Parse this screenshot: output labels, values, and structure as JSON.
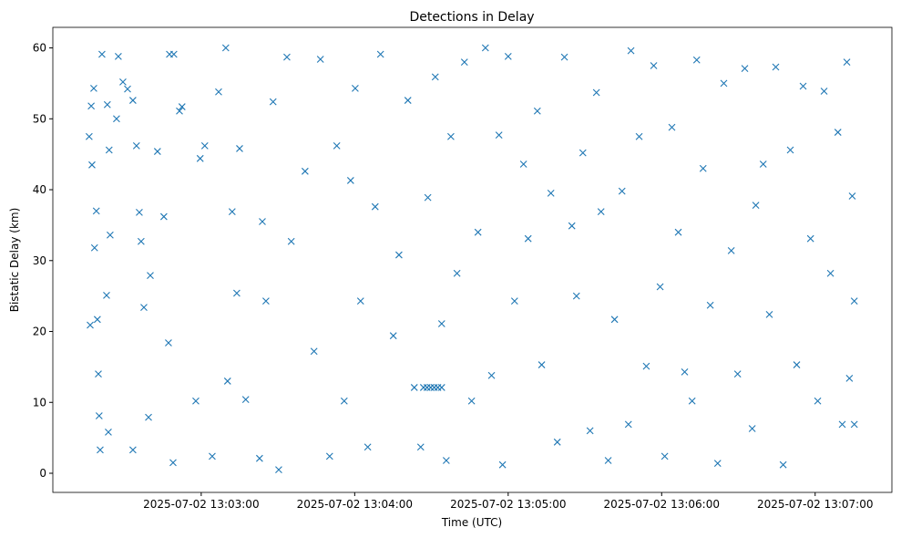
{
  "chart_data": {
    "type": "scatter",
    "title": "Detections in Delay",
    "xlabel": "Time (UTC)",
    "ylabel": "Bistatic Delay (km)",
    "x_unit": "seconds after 2025-07-02 13:02:00",
    "xlim": [
      2,
      330
    ],
    "ylim": [
      -2.7,
      62.9
    ],
    "x_ticks": [
      {
        "value": 60,
        "label": "2025-07-02 13:03:00"
      },
      {
        "value": 120,
        "label": "2025-07-02 13:04:00"
      },
      {
        "value": 180,
        "label": "2025-07-02 13:05:00"
      },
      {
        "value": 240,
        "label": "2025-07-02 13:06:00"
      },
      {
        "value": 300,
        "label": "2025-07-02 13:07:00"
      }
    ],
    "y_ticks": [
      {
        "value": 0,
        "label": "0"
      },
      {
        "value": 10,
        "label": "10"
      },
      {
        "value": 20,
        "label": "20"
      },
      {
        "value": 30,
        "label": "30"
      },
      {
        "value": 40,
        "label": "40"
      },
      {
        "value": 50,
        "label": "50"
      },
      {
        "value": 60,
        "label": "60"
      }
    ],
    "marker": "x",
    "color": "#1f77b4",
    "grid": false,
    "points": [
      [
        16.2,
        47.5
      ],
      [
        17.3,
        43.5
      ],
      [
        18,
        54.3
      ],
      [
        17,
        51.8
      ],
      [
        19,
        37
      ],
      [
        18.3,
        31.8
      ],
      [
        19.4,
        21.7
      ],
      [
        16.6,
        20.9
      ],
      [
        19.8,
        14
      ],
      [
        20.1,
        8.1
      ],
      [
        20.5,
        3.3
      ],
      [
        21.2,
        59.1
      ],
      [
        23.3,
        52
      ],
      [
        24,
        45.6
      ],
      [
        24.4,
        33.6
      ],
      [
        23,
        25.1
      ],
      [
        23.7,
        5.8
      ],
      [
        26.9,
        50
      ],
      [
        27.6,
        58.8
      ],
      [
        29.4,
        55.2
      ],
      [
        31.2,
        54.2
      ],
      [
        33.3,
        52.6
      ],
      [
        35.8,
        36.8
      ],
      [
        34.7,
        46.2
      ],
      [
        36.5,
        32.7
      ],
      [
        37.6,
        23.4
      ],
      [
        33.3,
        3.3
      ],
      [
        39.4,
        7.9
      ],
      [
        40.1,
        27.9
      ],
      [
        42.9,
        45.4
      ],
      [
        45.4,
        36.2
      ],
      [
        47.2,
        18.4
      ],
      [
        47.6,
        59.1
      ],
      [
        49.3,
        59.1
      ],
      [
        51.5,
        51.1
      ],
      [
        52.5,
        51.7
      ],
      [
        49,
        1.5
      ],
      [
        57.9,
        10.2
      ],
      [
        59.6,
        44.4
      ],
      [
        61.4,
        46.2
      ],
      [
        64.3,
        2.4
      ],
      [
        66.8,
        53.8
      ],
      [
        69.6,
        60
      ],
      [
        70.3,
        13
      ],
      [
        72.1,
        36.9
      ],
      [
        73.9,
        25.4
      ],
      [
        75,
        45.8
      ],
      [
        77.4,
        10.4
      ],
      [
        82.8,
        2.1
      ],
      [
        83.9,
        35.5
      ],
      [
        85.3,
        24.3
      ],
      [
        88.1,
        52.4
      ],
      [
        90.3,
        0.5
      ],
      [
        93.5,
        58.7
      ],
      [
        95.2,
        32.7
      ],
      [
        100.6,
        42.6
      ],
      [
        104.1,
        17.2
      ],
      [
        106.6,
        58.4
      ],
      [
        110.2,
        2.4
      ],
      [
        113,
        46.2
      ],
      [
        115.9,
        10.2
      ],
      [
        118.4,
        41.3
      ],
      [
        120.2,
        54.3
      ],
      [
        122.3,
        24.3
      ],
      [
        125.1,
        3.7
      ],
      [
        128,
        37.6
      ],
      [
        130.1,
        59.1
      ],
      [
        135.1,
        19.4
      ],
      [
        137.3,
        30.8
      ],
      [
        140.8,
        52.6
      ],
      [
        143.3,
        12.1
      ],
      [
        145.8,
        3.7
      ],
      [
        148.6,
        38.9
      ],
      [
        151.5,
        55.9
      ],
      [
        154,
        21.1
      ],
      [
        155.8,
        1.8
      ],
      [
        157.6,
        47.5
      ],
      [
        160,
        28.2
      ],
      [
        162.9,
        58
      ],
      [
        165.7,
        10.2
      ],
      [
        168.2,
        34
      ],
      [
        171.1,
        60
      ],
      [
        173.5,
        13.8
      ],
      [
        176.4,
        47.7
      ],
      [
        177.8,
        1.2
      ],
      [
        180,
        58.8
      ],
      [
        182.5,
        24.3
      ],
      [
        186,
        43.6
      ],
      [
        187.8,
        33.1
      ],
      [
        191.4,
        51.1
      ],
      [
        193.1,
        15.3
      ],
      [
        196.7,
        39.5
      ],
      [
        199.2,
        4.4
      ],
      [
        202,
        58.7
      ],
      [
        204.9,
        34.9
      ],
      [
        206.7,
        25
      ],
      [
        209.2,
        45.2
      ],
      [
        212,
        6
      ],
      [
        214.5,
        53.7
      ],
      [
        216.3,
        36.9
      ],
      [
        219.1,
        1.8
      ],
      [
        221.6,
        21.7
      ],
      [
        224.5,
        39.8
      ],
      [
        227,
        6.9
      ],
      [
        228,
        59.6
      ],
      [
        231.2,
        47.5
      ],
      [
        234,
        15.1
      ],
      [
        236.9,
        57.5
      ],
      [
        239.4,
        26.3
      ],
      [
        241.2,
        2.4
      ],
      [
        244,
        48.8
      ],
      [
        246.5,
        34
      ],
      [
        249,
        14.3
      ],
      [
        251.9,
        10.2
      ],
      [
        253.7,
        58.3
      ],
      [
        256.2,
        43
      ],
      [
        259,
        23.7
      ],
      [
        261.9,
        1.4
      ],
      [
        264.3,
        55
      ],
      [
        267.2,
        31.4
      ],
      [
        269.7,
        14
      ],
      [
        272.5,
        57.1
      ],
      [
        275.4,
        6.3
      ],
      [
        276.8,
        37.8
      ],
      [
        279.7,
        43.6
      ],
      [
        282.1,
        22.4
      ],
      [
        284.6,
        57.3
      ],
      [
        287.5,
        1.2
      ],
      [
        290.3,
        45.6
      ],
      [
        292.8,
        15.3
      ],
      [
        295.3,
        54.6
      ],
      [
        298.2,
        33.1
      ],
      [
        301,
        10.2
      ],
      [
        303.5,
        53.9
      ],
      [
        306,
        28.2
      ],
      [
        308.9,
        48.1
      ],
      [
        310.6,
        6.9
      ],
      [
        312.4,
        58
      ],
      [
        313.4,
        13.4
      ],
      [
        314.5,
        39.1
      ],
      [
        315.3,
        24.3
      ],
      [
        315.3,
        6.9
      ],
      [
        146.9,
        12.1
      ],
      [
        148.3,
        12.1
      ],
      [
        149.7,
        12.1
      ],
      [
        151.1,
        12.1
      ],
      [
        152.5,
        12.1
      ],
      [
        154,
        12.1
      ]
    ]
  }
}
